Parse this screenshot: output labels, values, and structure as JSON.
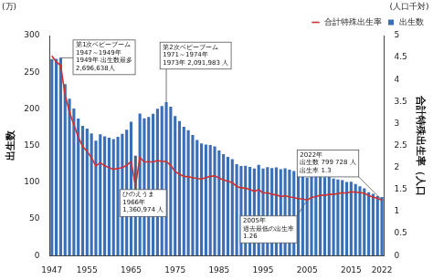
{
  "chart_data": {
    "type": "bar",
    "categories": [
      "1947",
      null,
      null,
      null,
      null,
      null,
      null,
      null,
      "1955",
      null,
      null,
      null,
      null,
      null,
      null,
      null,
      null,
      null,
      "1965",
      null,
      null,
      null,
      null,
      null,
      null,
      null,
      null,
      null,
      "1975",
      null,
      null,
      null,
      null,
      null,
      null,
      null,
      null,
      null,
      "1985",
      null,
      null,
      null,
      null,
      null,
      null,
      null,
      null,
      null,
      "1995",
      null,
      null,
      null,
      null,
      null,
      null,
      null,
      null,
      null,
      "2005",
      null,
      null,
      null,
      null,
      null,
      null,
      null,
      null,
      null,
      "2015",
      null,
      null,
      null,
      null,
      null,
      null,
      "2022"
    ],
    "series": [
      {
        "name": "出生数",
        "type": "bar",
        "color": "#3a6fb7",
        "axis": "y",
        "values": [
          267.9,
          268.2,
          269.7,
          233.8,
          213.8,
          200.5,
          186.8,
          177.0,
          173.1,
          166.5,
          156.7,
          165.3,
          162.6,
          160.6,
          158.9,
          161.9,
          166.0,
          171.7,
          182.4,
          136.1,
          193.6,
          187.2,
          188.9,
          193.4,
          200.1,
          203.9,
          209.2,
          203.0,
          190.1,
          183.3,
          175.5,
          170.9,
          164.3,
          157.7,
          152.9,
          151.5,
          150.9,
          149.0,
          143.2,
          138.3,
          134.7,
          131.4,
          124.7,
          122.2,
          122.3,
          120.9,
          118.8,
          123.8,
          118.7,
          120.7,
          119.2,
          120.3,
          117.8,
          119.1,
          117.1,
          115.4,
          112.4,
          111.1,
          106.3,
          109.3,
          109.0,
          109.1,
          107.0,
          107.1,
          105.1,
          103.7,
          103.0,
          100.4,
          100.6,
          97.7,
          94.6,
          91.8,
          86.5,
          84.1,
          81.2,
          80.0
        ]
      },
      {
        "name": "合計特殊出生率",
        "type": "line",
        "color": "#d0302f",
        "axis": "y2",
        "marker": "none",
        "line_style": "solid",
        "values": [
          4.54,
          4.4,
          4.32,
          3.65,
          3.26,
          2.98,
          2.69,
          2.48,
          2.37,
          2.22,
          2.04,
          2.11,
          2.04,
          2.0,
          1.96,
          1.98,
          2.0,
          2.05,
          2.14,
          1.58,
          2.23,
          2.13,
          2.13,
          2.13,
          2.16,
          2.14,
          2.14,
          2.05,
          1.91,
          1.85,
          1.8,
          1.79,
          1.77,
          1.75,
          1.74,
          1.77,
          1.8,
          1.81,
          1.76,
          1.72,
          1.69,
          1.66,
          1.57,
          1.54,
          1.53,
          1.5,
          1.46,
          1.5,
          1.42,
          1.43,
          1.39,
          1.38,
          1.34,
          1.36,
          1.33,
          1.32,
          1.29,
          1.29,
          1.26,
          1.32,
          1.34,
          1.37,
          1.37,
          1.39,
          1.39,
          1.41,
          1.43,
          1.42,
          1.45,
          1.44,
          1.43,
          1.42,
          1.36,
          1.33,
          1.3,
          1.26
        ]
      }
    ],
    "y_label": "出生数",
    "y_unit": "(万)",
    "y2_label": "合計特殊出生率（人口",
    "y2_unit": "(人口千対)",
    "ylim": [
      0,
      300
    ],
    "yticks": [
      0,
      50,
      100,
      150,
      200,
      250,
      300
    ],
    "y2lim": [
      0,
      5
    ],
    "y2ticks": [
      0,
      0.5,
      1,
      1.5,
      2,
      2.5,
      3,
      3.5,
      4,
      4.5,
      5
    ],
    "grid": false,
    "legend": "upper right",
    "annotations": [
      {
        "text": [
          "第1次ベビーブーム",
          "1947～1949年",
          "1949年 出生数最多",
          "2,696,638人"
        ],
        "x": 1949,
        "y": 269.7,
        "axis": "y"
      },
      {
        "text": [
          "第2次ベビーブーム",
          "1971～1974年",
          "1973年 2,091,983 人"
        ],
        "x": 1973,
        "y": 209.2,
        "axis": "y"
      },
      {
        "text": [
          "ひのえうま",
          "1966年",
          "1,360,974 人"
        ],
        "x": 1966,
        "y": 136.1,
        "axis": "y"
      },
      {
        "text": [
          "2005年",
          "過去最低の出生率",
          "1.26"
        ],
        "x": 2005,
        "y": 1.26,
        "axis": "y2"
      },
      {
        "text": [
          "2022年",
          "出生数 799 728 人",
          "出生率 1.3"
        ],
        "x": 2022,
        "y": 1.26,
        "axis": "y2"
      }
    ]
  }
}
